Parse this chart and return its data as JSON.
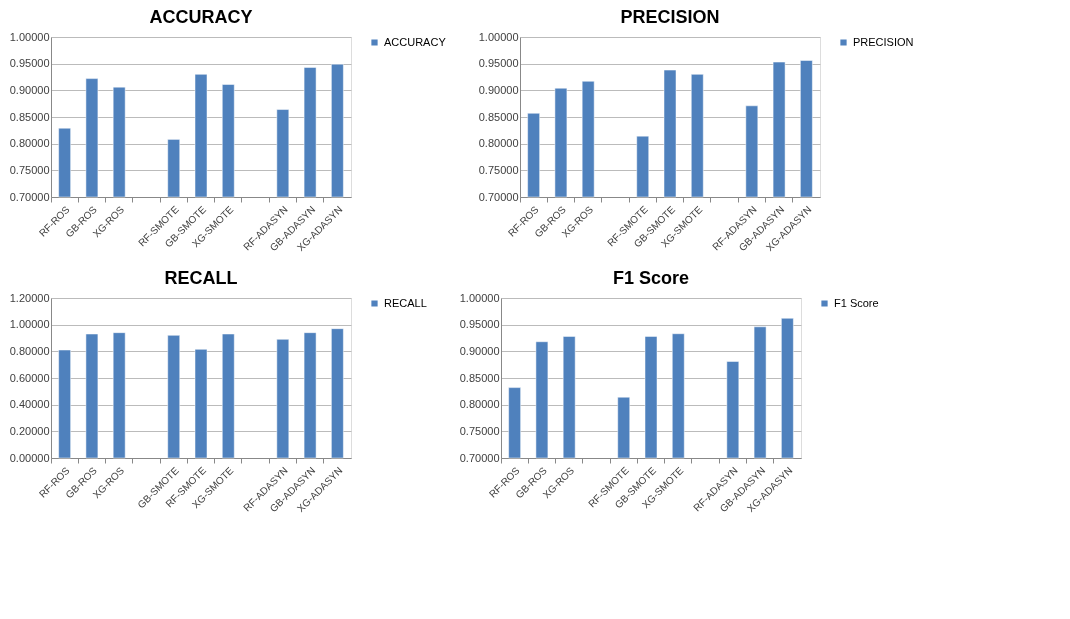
{
  "chart_data": [
    {
      "type": "bar",
      "title": "ACCURACY",
      "categories": [
        "RF-ROS",
        "GB-ROS",
        "XG-ROS",
        null,
        "RF-SMOTE",
        "GB-SMOTE",
        "XG-SMOTE",
        null,
        "RF-ADASYN",
        "GB-ADASYN",
        "XG-ADASYN"
      ],
      "series": [
        {
          "name": "ACCURACY",
          "color": "#4f81bd",
          "values": [
            0.829,
            0.922,
            0.906,
            null,
            0.808,
            0.93,
            0.911,
            null,
            0.864,
            0.943,
            0.949
          ]
        }
      ],
      "ylim": [
        0.7,
        1.0
      ],
      "yticks": [
        {
          "value": 0.7,
          "label": "0.70000"
        },
        {
          "value": 0.75,
          "label": "0.75000"
        },
        {
          "value": 0.8,
          "label": "0.80000"
        },
        {
          "value": 0.85,
          "label": "0.85000"
        },
        {
          "value": 0.9,
          "label": "0.90000"
        },
        {
          "value": 0.95,
          "label": "0.95000"
        },
        {
          "value": 1.0,
          "label": "1.00000"
        }
      ],
      "grid": "y",
      "legend": "right"
    },
    {
      "type": "bar",
      "title": "PRECISION",
      "categories": [
        "RF-ROS",
        "GB-ROS",
        "XG-ROS",
        null,
        "RF-SMOTE",
        "GB-SMOTE",
        "XG-SMOTE",
        null,
        "RF-ADASYN",
        "GB-ADASYN",
        "XG-ADASYN"
      ],
      "series": [
        {
          "name": "PRECISION",
          "color": "#4f81bd",
          "values": [
            0.857,
            0.904,
            0.917,
            null,
            0.814,
            0.938,
            0.93,
            null,
            0.871,
            0.953,
            0.956
          ]
        }
      ],
      "ylim": [
        0.7,
        1.0
      ],
      "yticks": [
        {
          "value": 0.7,
          "label": "0.70000"
        },
        {
          "value": 0.75,
          "label": "0.75000"
        },
        {
          "value": 0.8,
          "label": "0.80000"
        },
        {
          "value": 0.85,
          "label": "0.85000"
        },
        {
          "value": 0.9,
          "label": "0.90000"
        },
        {
          "value": 0.95,
          "label": "0.95000"
        },
        {
          "value": 1.0,
          "label": "1.00000"
        }
      ],
      "grid": "y",
      "legend": "right"
    },
    {
      "type": "bar",
      "title": "RECALL",
      "categories": [
        "RF-ROS",
        "GB-ROS",
        "XG-ROS",
        null,
        "GB-SMOTE",
        "RF-SMOTE",
        "XG-SMOTE",
        null,
        "RF-ADASYN",
        "GB-ADASYN",
        "XG-ADASYN"
      ],
      "series": [
        {
          "name": "RECALL",
          "color": "#4f81bd",
          "values": [
            0.81,
            0.93,
            0.94,
            null,
            0.92,
            0.815,
            0.93,
            null,
            0.89,
            0.94,
            0.97
          ]
        }
      ],
      "ylim": [
        0.0,
        1.2
      ],
      "yticks": [
        {
          "value": 0.0,
          "label": "0.00000"
        },
        {
          "value": 0.2,
          "label": "0.20000"
        },
        {
          "value": 0.4,
          "label": "0.40000"
        },
        {
          "value": 0.6,
          "label": "0.60000"
        },
        {
          "value": 0.8,
          "label": "0.80000"
        },
        {
          "value": 1.0,
          "label": "1.00000"
        },
        {
          "value": 1.2,
          "label": "1.20000"
        }
      ],
      "grid": "y",
      "legend": "right"
    },
    {
      "type": "bar",
      "title": "F1 Score",
      "categories": [
        "RF-ROS",
        "GB-ROS",
        "XG-ROS",
        null,
        "RF-SMOTE",
        "GB-SMOTE",
        "XG-SMOTE",
        null,
        "RF-ADASYN",
        "GB-ADASYN",
        "XG-ADASYN"
      ],
      "series": [
        {
          "name": "F1 Score",
          "color": "#4f81bd",
          "values": [
            0.832,
            0.918,
            0.928,
            null,
            0.814,
            0.928,
            0.933,
            null,
            0.881,
            0.946,
            0.962
          ]
        }
      ],
      "ylim": [
        0.7,
        1.0
      ],
      "yticks": [
        {
          "value": 0.7,
          "label": "0.70000"
        },
        {
          "value": 0.75,
          "label": "0.75000"
        },
        {
          "value": 0.8,
          "label": "0.80000"
        },
        {
          "value": 0.85,
          "label": "0.85000"
        },
        {
          "value": 0.9,
          "label": "0.90000"
        },
        {
          "value": 0.95,
          "label": "0.95000"
        },
        {
          "value": 1.0,
          "label": "1.00000"
        }
      ],
      "grid": "y",
      "legend": "right"
    }
  ]
}
